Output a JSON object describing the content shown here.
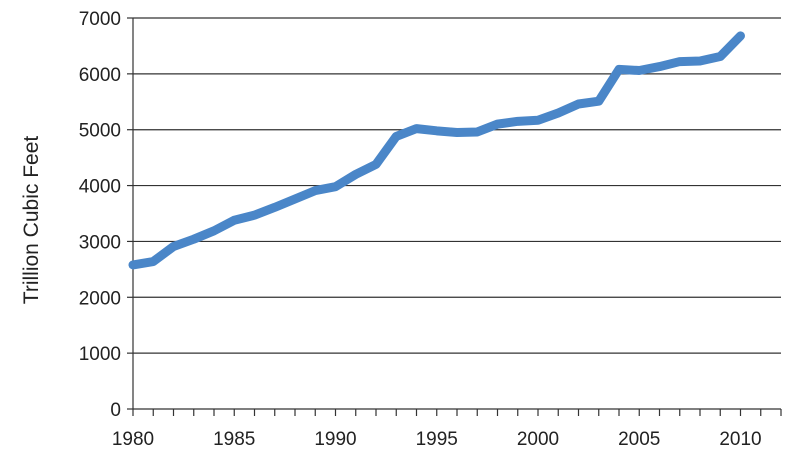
{
  "chart_data": {
    "type": "line",
    "title": "",
    "xlabel": "",
    "ylabel": "Trillion Cubic Feet",
    "xlim": [
      1980,
      2012
    ],
    "ylim": [
      0,
      7000
    ],
    "x_ticks": [
      1980,
      1985,
      1990,
      1995,
      2000,
      2005,
      2010
    ],
    "y_ticks": [
      0,
      1000,
      2000,
      3000,
      4000,
      5000,
      6000,
      7000
    ],
    "grid": "horizontal",
    "legend": "none",
    "series": [
      {
        "color": "#4a86c8",
        "x": [
          1980,
          1981,
          1982,
          1983,
          1984,
          1985,
          1986,
          1987,
          1988,
          1989,
          1990,
          1991,
          1992,
          1993,
          1994,
          1995,
          1996,
          1997,
          1998,
          1999,
          2000,
          2001,
          2002,
          2003,
          2004,
          2005,
          2006,
          2007,
          2008,
          2009,
          2010
        ],
        "y": [
          2580,
          2640,
          2910,
          3040,
          3190,
          3380,
          3470,
          3610,
          3760,
          3910,
          3980,
          4200,
          4380,
          4880,
          5020,
          4980,
          4950,
          4960,
          5100,
          5150,
          5170,
          5300,
          5460,
          5510,
          6080,
          6060,
          6130,
          6220,
          6230,
          6310,
          6680
        ]
      }
    ]
  }
}
